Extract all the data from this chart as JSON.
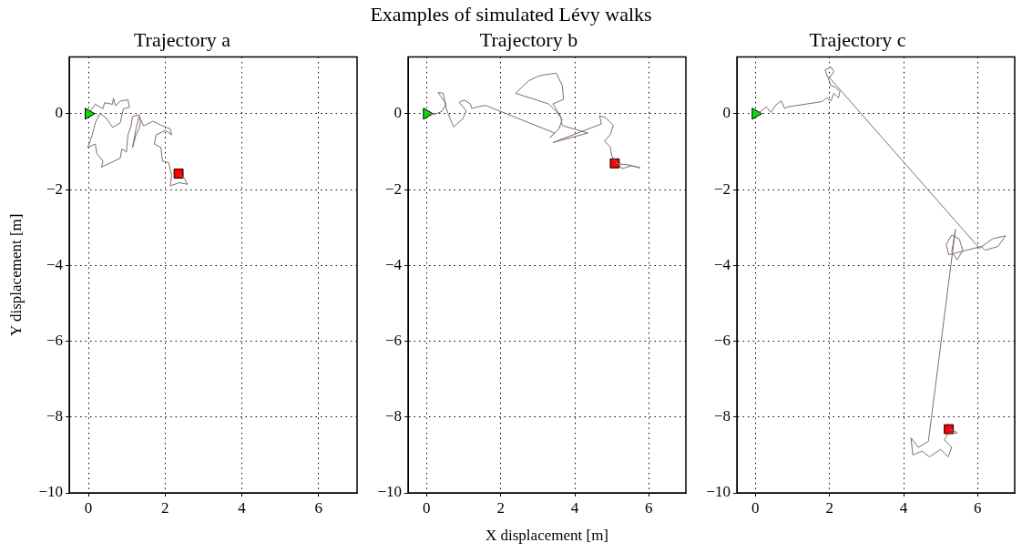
{
  "chart_data": [
    {
      "type": "line",
      "title": "Trajectory a",
      "ylabel": "Y displacement [m]",
      "annotations": [
        "Examples of simulated Lévy walks"
      ],
      "xlim": [
        -0.5,
        7
      ],
      "ylim": [
        -10,
        1.5
      ],
      "xticks": [
        0,
        2,
        4,
        6
      ],
      "yticks": [
        -10,
        -8,
        -6,
        -4,
        -2,
        0
      ],
      "grid": true,
      "legend": false,
      "series": [
        {
          "type": "line",
          "color": "#806b6b",
          "marker": "none",
          "x": [
            0,
            0.18,
            0.38,
            0.42,
            0.63,
            0.65,
            0.71,
            0.83,
            1.03,
            1.07,
            0.91,
            0.83,
            0.63,
            0.46,
            0.3,
            0.18,
            0.1,
            -0.02,
            0.18,
            0.22,
            0.38,
            0.34,
            0.59,
            0.83,
            0.87,
            0.99,
            1.03,
            1.11,
            1.15,
            1.32,
            1.36,
            1.32,
            1.24,
            1.15,
            1.24,
            1.32,
            1.44,
            1.68,
            1.93,
            2.13,
            2.17,
            2.01,
            1.76,
            1.72,
            1.89,
            1.93,
            2.09,
            2.17,
            2.13,
            2.37,
            2.58,
            2.5,
            2.36
          ],
          "values": [
            0,
            0.25,
            0.13,
            0.29,
            0.25,
            0.41,
            0.21,
            0.33,
            0.37,
            0.17,
            0.13,
            -0.24,
            -0.36,
            -0.11,
            0.01,
            -0.24,
            -0.56,
            -0.89,
            -0.8,
            -1.05,
            -1.25,
            -1.41,
            -1.29,
            -1.17,
            -0.93,
            -1.01,
            -0.56,
            -0.32,
            -0.07,
            -0.03,
            -0.2,
            -0.4,
            -0.56,
            -0.89,
            -0.4,
            -0.07,
            -0.32,
            -0.2,
            -0.32,
            -0.4,
            -0.56,
            -0.44,
            -0.56,
            -0.8,
            -0.89,
            -1.25,
            -1.29,
            -1.62,
            -1.9,
            -1.82,
            -1.86,
            -1.7,
            -1.6
          ]
        },
        {
          "type": "scatter",
          "color": "#00e600",
          "marker": "triangle",
          "x": [
            0
          ],
          "values": [
            0
          ]
        },
        {
          "type": "scatter",
          "color": "#ff0000",
          "marker": "square",
          "x": [
            2.35
          ],
          "values": [
            -1.58
          ]
        }
      ]
    },
    {
      "type": "line",
      "title": "Trajectory b",
      "xlabel": "X displacement [m]",
      "xlim": [
        -0.5,
        7
      ],
      "ylim": [
        -10,
        1.5
      ],
      "xticks": [
        0,
        2,
        4,
        6
      ],
      "yticks": [
        -10,
        -8,
        -6,
        -4,
        -2,
        0
      ],
      "grid": true,
      "legend": false,
      "series": [
        {
          "type": "line",
          "color": "#806b6b",
          "marker": "none",
          "x": [
            0,
            0.2,
            0.41,
            0.53,
            0.31,
            0.45,
            0.53,
            0.61,
            0.73,
            0.98,
            1.07,
            0.88,
            1.02,
            1.18,
            1.22,
            1.38,
            1.59,
            3.46,
            3.33,
            3.58,
            3.66,
            3.5,
            3.29,
            2.4,
            2.76,
            3.01,
            3.21,
            3.5,
            3.66,
            3.7,
            3.41,
            3.62,
            3.66,
            4.35,
            3.41,
            4.72,
            4.67,
            4.84,
            5.04,
            4.96,
            4.8,
            4.96,
            5.0,
            5.28,
            5.53,
            5.77,
            5.45,
            5.08
          ],
          "values": [
            0,
            -0.02,
            0.06,
            0.26,
            0.56,
            0.54,
            0.14,
            -0.07,
            -0.35,
            -0.13,
            0.08,
            0.3,
            0.36,
            0.26,
            0.14,
            0.18,
            0.22,
            -0.51,
            -0.63,
            -0.39,
            -0.15,
            0.06,
            0.26,
            0.54,
            0.87,
            0.99,
            1.03,
            1.07,
            0.75,
            0.38,
            0.26,
            -0.07,
            -0.31,
            -0.51,
            -0.76,
            -0.27,
            -0.05,
            -0.11,
            -0.31,
            -0.55,
            -0.72,
            -0.88,
            -1.12,
            -1.45,
            -1.37,
            -1.43,
            -1.35,
            -1.31
          ]
        },
        {
          "type": "scatter",
          "color": "#00e600",
          "marker": "triangle",
          "x": [
            0
          ],
          "values": [
            0
          ]
        },
        {
          "type": "scatter",
          "color": "#ff0000",
          "marker": "square",
          "x": [
            5.08
          ],
          "values": [
            -1.31
          ]
        }
      ]
    },
    {
      "type": "line",
      "title": "Trajectory c",
      "xlim": [
        -0.5,
        7
      ],
      "ylim": [
        -10,
        1.5
      ],
      "xticks": [
        0,
        2,
        4,
        6
      ],
      "yticks": [
        -10,
        -8,
        -6,
        -4,
        -2,
        0
      ],
      "grid": true,
      "legend": false,
      "series": [
        {
          "type": "line",
          "color": "#806b6b",
          "marker": "none",
          "x": [
            0,
            0.14,
            0.3,
            0.42,
            0.54,
            0.7,
            0.79,
            0.87,
            1.8,
            1.92,
            2.04,
            2.12,
            2.24,
            2.28,
            2.16,
            2.04,
            1.96,
            1.88,
            2.04,
            2.12,
            2.0,
            6.05,
            6.4,
            6.75,
            6.55,
            6.2,
            6.1,
            5.22,
            5.15,
            5.3,
            5.5,
            5.6,
            5.45,
            5.3,
            5.4,
            4.67,
            4.4,
            4.2,
            4.25,
            4.5,
            4.7,
            5.0,
            5.2,
            5.3,
            5.1,
            5.2,
            5.45,
            5.35,
            5.22
          ],
          "values": [
            0,
            0.06,
            0.18,
            0.03,
            0.22,
            0.34,
            0.14,
            0.18,
            0.32,
            0.42,
            0.34,
            0.54,
            0.42,
            0.58,
            0.7,
            0.74,
            0.95,
            1.15,
            1.23,
            1.11,
            0.95,
            -3.55,
            -3.3,
            -3.22,
            -3.5,
            -3.6,
            -3.5,
            -3.72,
            -3.45,
            -3.2,
            -3.3,
            -3.6,
            -3.85,
            -3.65,
            -3.05,
            -8.64,
            -8.8,
            -8.55,
            -9.0,
            -8.9,
            -9.05,
            -8.85,
            -9.05,
            -8.8,
            -8.6,
            -8.45,
            -8.42,
            -8.35,
            -8.32
          ]
        },
        {
          "type": "scatter",
          "color": "#00e600",
          "marker": "triangle",
          "x": [
            0
          ],
          "values": [
            0
          ]
        },
        {
          "type": "scatter",
          "color": "#ff0000",
          "marker": "square",
          "x": [
            5.22
          ],
          "values": [
            -8.32
          ]
        }
      ]
    }
  ]
}
